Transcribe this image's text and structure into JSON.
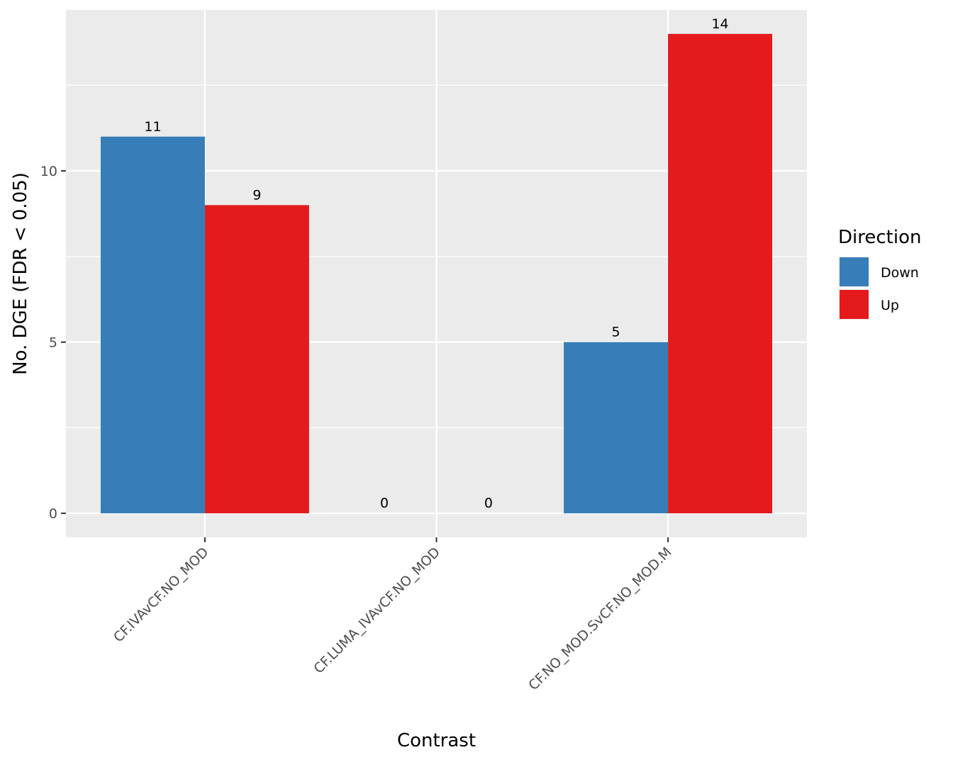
{
  "chart_data": {
    "type": "bar",
    "xlabel": "Contrast",
    "ylabel": "No. DGE (FDR < 0.05)",
    "categories": [
      "CF.IVAvCF.NO_MOD",
      "CF.LUMA_IVAvCF.NO_MOD",
      "CF.NO_MOD.SvCF.NO_MOD.M"
    ],
    "series": [
      {
        "name": "Down",
        "color": "#377eb8",
        "values": [
          11,
          0,
          5
        ]
      },
      {
        "name": "Up",
        "color": "#e41a1c",
        "values": [
          9,
          0,
          14
        ]
      }
    ],
    "ylim": [
      -0.7,
      14.7
    ],
    "yticks": [
      0,
      5,
      10
    ],
    "grid": true,
    "legend": {
      "title": "Direction",
      "position": "right"
    },
    "panel_background": "#ebebeb"
  }
}
